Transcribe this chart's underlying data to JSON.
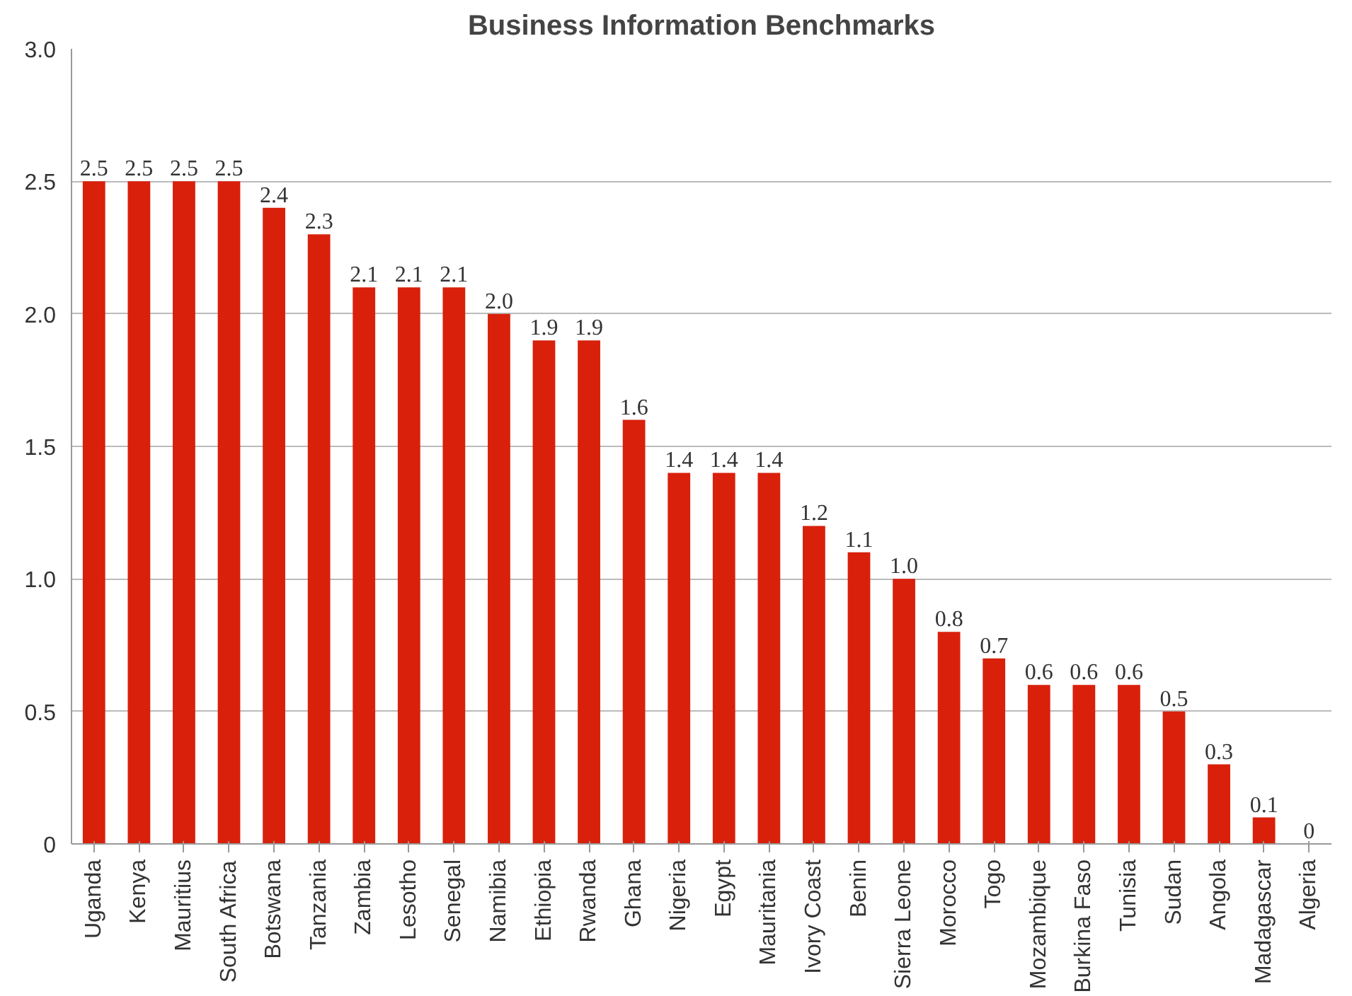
{
  "chart_data": {
    "type": "bar",
    "title": "Business Information Benchmarks",
    "categories": [
      "Uganda",
      "Kenya",
      "Mauritius",
      "South Africa",
      "Botswana",
      "Tanzania",
      "Zambia",
      "Lesotho",
      "Senegal",
      "Namibia",
      "Ethiopia",
      "Rwanda",
      "Ghana",
      "Nigeria",
      "Egypt",
      "Mauritania",
      "Ivory Coast",
      "Benin",
      "Sierra Leone",
      "Morocco",
      "Togo",
      "Mozambique",
      "Burkina Faso",
      "Tunisia",
      "Sudan",
      "Angola",
      "Madagascar",
      "Algeria"
    ],
    "values": [
      2.5,
      2.5,
      2.5,
      2.5,
      2.4,
      2.3,
      2.1,
      2.1,
      2.1,
      2.0,
      1.9,
      1.9,
      1.6,
      1.4,
      1.4,
      1.4,
      1.2,
      1.1,
      1.0,
      0.8,
      0.7,
      0.6,
      0.6,
      0.6,
      0.5,
      0.3,
      0.1,
      0
    ],
    "value_labels": [
      "2.5",
      "2.5",
      "2.5",
      "2.5",
      "2.4",
      "2.3",
      "2.1",
      "2.1",
      "2.1",
      "2.0",
      "1.9",
      "1.9",
      "1.6",
      "1.4",
      "1.4",
      "1.4",
      "1.2",
      "1.1",
      "1.0",
      "0.8",
      "0.7",
      "0.6",
      "0.6",
      "0.6",
      "0.5",
      "0.3",
      "0.1",
      "0"
    ],
    "color": "#d9200b",
    "ylim": [
      0,
      3
    ],
    "yticks": [
      {
        "value": 0,
        "label": "0"
      },
      {
        "value": 0.5,
        "label": "0.5"
      },
      {
        "value": 1,
        "label": "1.0"
      },
      {
        "value": 1.5,
        "label": "1.5"
      },
      {
        "value": 2,
        "label": "2.0"
      },
      {
        "value": 2.5,
        "label": "2.5"
      },
      {
        "value": 3,
        "label": "3.0"
      }
    ],
    "grid": "y"
  }
}
